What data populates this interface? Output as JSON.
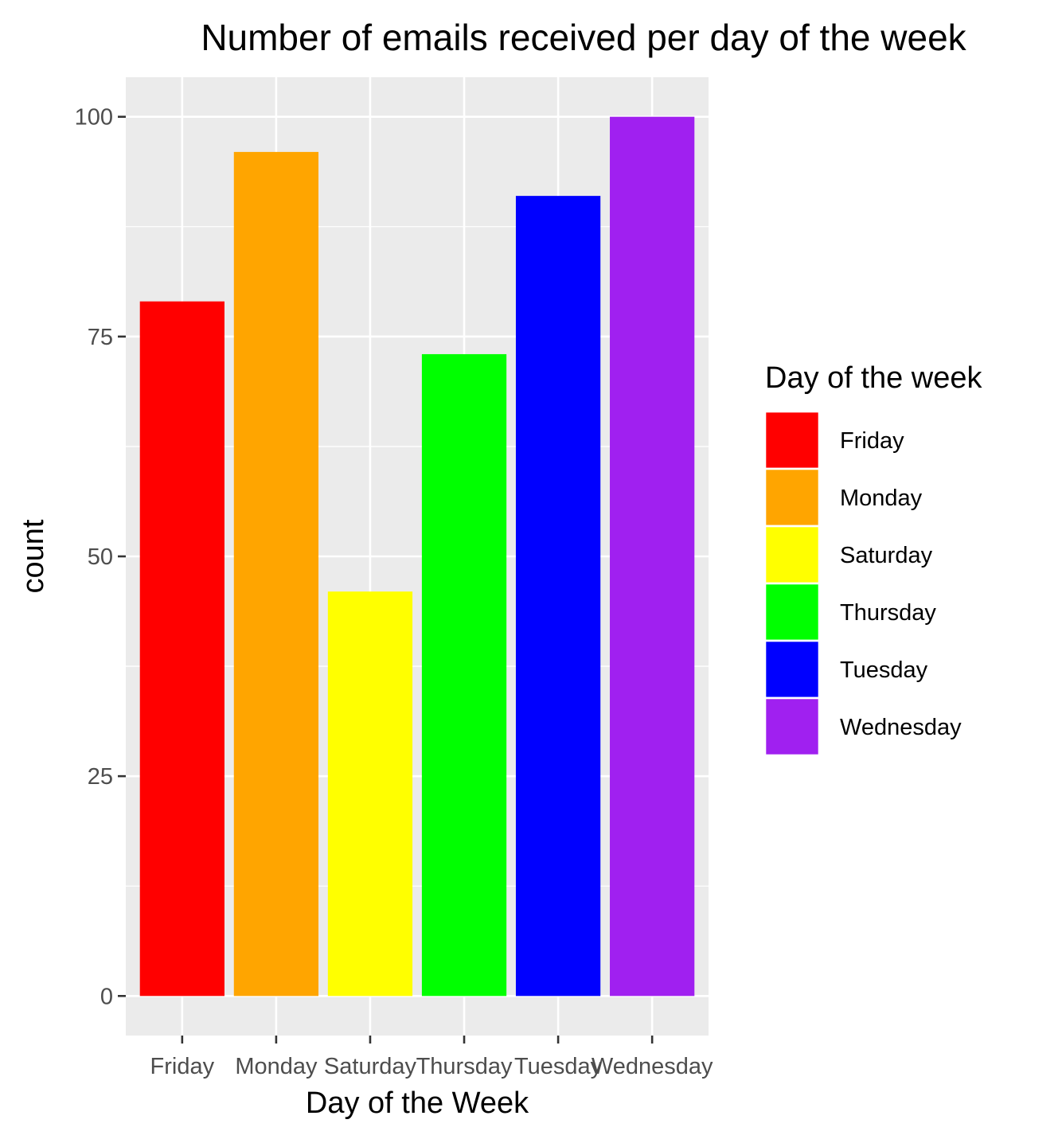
{
  "chart_data": {
    "type": "bar",
    "title": "Number of emails received per day of the week",
    "xlabel": "Day of the Week",
    "ylabel": "count",
    "categories": [
      "Friday",
      "Monday",
      "Saturday",
      "Thursday",
      "Tuesday",
      "Wednesday"
    ],
    "values": [
      79,
      96,
      46,
      73,
      91,
      100
    ],
    "colors": [
      "#ff0000",
      "#ffa500",
      "#ffff00",
      "#00ff00",
      "#0000ff",
      "#a020f0"
    ],
    "ylim": [
      -4.5,
      104.5
    ],
    "y_ticks": [
      0,
      25,
      50,
      75,
      100
    ],
    "grid": true,
    "panel_background": "#ebebeb",
    "grid_color": "#ffffff",
    "legend": {
      "title": "Day of the week",
      "position": "right",
      "entries": [
        "Friday",
        "Monday",
        "Saturday",
        "Thursday",
        "Tuesday",
        "Wednesday"
      ]
    }
  }
}
